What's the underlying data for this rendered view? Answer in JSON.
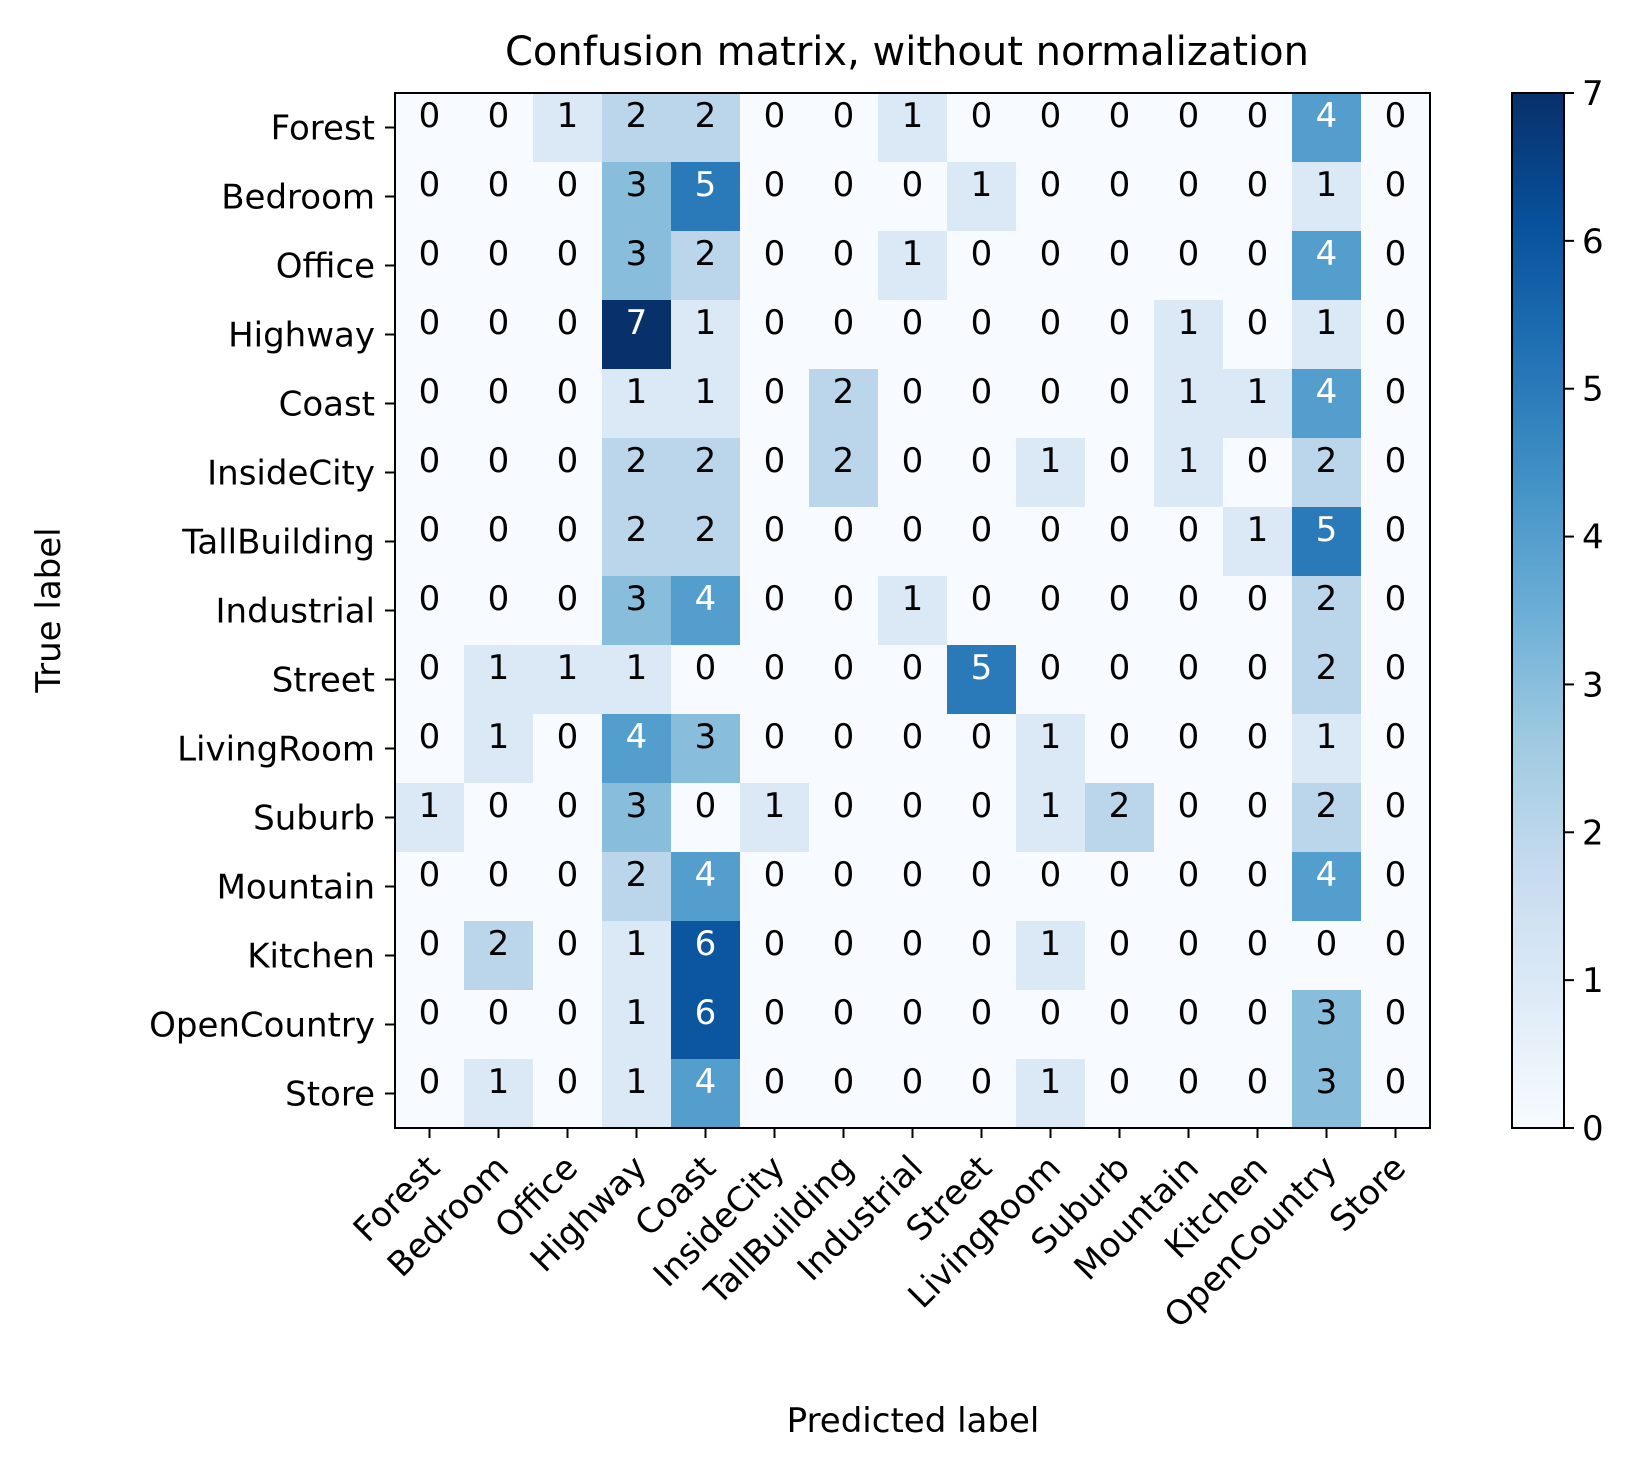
{
  "chart_data": {
    "type": "heatmap",
    "title": "Confusion matrix, without normalization",
    "xlabel": "Predicted label",
    "ylabel": "True label",
    "labels": [
      "Forest",
      "Bedroom",
      "Office",
      "Highway",
      "Coast",
      "InsideCity",
      "TallBuilding",
      "Industrial",
      "Street",
      "LivingRoom",
      "Suburb",
      "Mountain",
      "Kitchen",
      "OpenCountry",
      "Store"
    ],
    "matrix": [
      [
        0,
        0,
        1,
        2,
        2,
        0,
        0,
        1,
        0,
        0,
        0,
        0,
        0,
        4,
        0
      ],
      [
        0,
        0,
        0,
        3,
        5,
        0,
        0,
        0,
        1,
        0,
        0,
        0,
        0,
        1,
        0
      ],
      [
        0,
        0,
        0,
        3,
        2,
        0,
        0,
        1,
        0,
        0,
        0,
        0,
        0,
        4,
        0
      ],
      [
        0,
        0,
        0,
        7,
        1,
        0,
        0,
        0,
        0,
        0,
        0,
        1,
        0,
        1,
        0
      ],
      [
        0,
        0,
        0,
        1,
        1,
        0,
        2,
        0,
        0,
        0,
        0,
        1,
        1,
        4,
        0
      ],
      [
        0,
        0,
        0,
        2,
        2,
        0,
        2,
        0,
        0,
        1,
        0,
        1,
        0,
        2,
        0
      ],
      [
        0,
        0,
        0,
        2,
        2,
        0,
        0,
        0,
        0,
        0,
        0,
        0,
        1,
        5,
        0
      ],
      [
        0,
        0,
        0,
        3,
        4,
        0,
        0,
        1,
        0,
        0,
        0,
        0,
        0,
        2,
        0
      ],
      [
        0,
        1,
        1,
        1,
        0,
        0,
        0,
        0,
        5,
        0,
        0,
        0,
        0,
        2,
        0
      ],
      [
        0,
        1,
        0,
        4,
        3,
        0,
        0,
        0,
        0,
        1,
        0,
        0,
        0,
        1,
        0
      ],
      [
        1,
        0,
        0,
        3,
        0,
        1,
        0,
        0,
        0,
        1,
        2,
        0,
        0,
        2,
        0
      ],
      [
        0,
        0,
        0,
        2,
        4,
        0,
        0,
        0,
        0,
        0,
        0,
        0,
        0,
        4,
        0
      ],
      [
        0,
        2,
        0,
        1,
        6,
        0,
        0,
        0,
        0,
        1,
        0,
        0,
        0,
        0,
        0
      ],
      [
        0,
        0,
        0,
        1,
        6,
        0,
        0,
        0,
        0,
        0,
        0,
        0,
        0,
        3,
        0
      ],
      [
        0,
        1,
        0,
        1,
        4,
        0,
        0,
        0,
        0,
        1,
        0,
        0,
        0,
        3,
        0
      ]
    ],
    "colorbar": {
      "min": 0,
      "max": 7,
      "ticks": [
        0,
        1,
        2,
        3,
        4,
        5,
        6,
        7
      ]
    },
    "colormap": "Blues",
    "colors": {
      "low": "#f7fbff",
      "high": "#08306b",
      "text_dark": "#000000",
      "text_light": "#ffffff"
    }
  }
}
